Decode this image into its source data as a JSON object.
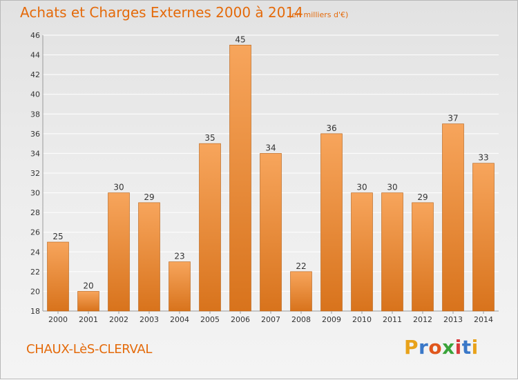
{
  "header": {
    "title": "Achats et Charges Externes 2000 à 2014",
    "subtitle": "(en milliers d'€)"
  },
  "footer": {
    "commune": "CHAUX-LèS-CLERVAL",
    "brand_letters": [
      "P",
      "r",
      "o",
      "x",
      "i",
      "t",
      "i"
    ],
    "brand_colors": [
      "#e8a21a",
      "#3a78c8",
      "#e0571c",
      "#3aa33a",
      "#d83a3a",
      "#3a78c8",
      "#e8a21a"
    ]
  },
  "chart_data": {
    "type": "bar",
    "title": "Achats et Charges Externes 2000 à 2014",
    "subtitle": "(en milliers d'€)",
    "xlabel": "",
    "ylabel": "",
    "categories": [
      "2000",
      "2001",
      "2002",
      "2003",
      "2004",
      "2005",
      "2006",
      "2007",
      "2008",
      "2009",
      "2010",
      "2011",
      "2012",
      "2013",
      "2014"
    ],
    "values": [
      25,
      20,
      30,
      29,
      23,
      35,
      45,
      34,
      22,
      36,
      30,
      30,
      29,
      37,
      33
    ],
    "ylim": [
      18,
      46
    ],
    "yticks": [
      18,
      20,
      22,
      24,
      26,
      28,
      30,
      32,
      34,
      36,
      38,
      40,
      42,
      44,
      46
    ],
    "grid": true,
    "data_labels": true,
    "colors": {
      "bar_light": "#f7a55c",
      "bar_dark": "#d8731c",
      "bar_edge": "#b55f14",
      "grid": "#ffffff",
      "axis_text": "#333333",
      "title": "#e46a0a"
    }
  }
}
